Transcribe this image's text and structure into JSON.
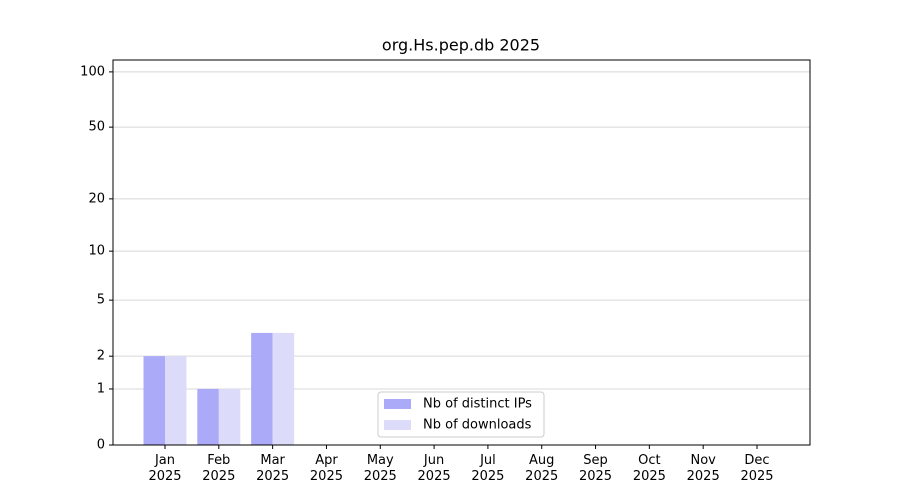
{
  "chart_data": {
    "type": "bar",
    "title": "org.Hs.pep.db 2025",
    "categories": [
      "Jan\n2025",
      "Feb\n2025",
      "Mar\n2025",
      "Apr\n2025",
      "May\n2025",
      "Jun\n2025",
      "Jul\n2025",
      "Aug\n2025",
      "Sep\n2025",
      "Oct\n2025",
      "Nov\n2025",
      "Dec\n2025"
    ],
    "series": [
      {
        "name": "Nb of distinct IPs",
        "color": "#aaaaf8",
        "values": [
          2,
          1,
          3,
          0,
          0,
          0,
          0,
          0,
          0,
          0,
          0,
          0
        ]
      },
      {
        "name": "Nb of downloads",
        "color": "#dcdcfa",
        "values": [
          2,
          1,
          3,
          0,
          0,
          0,
          0,
          0,
          0,
          0,
          0,
          0
        ]
      }
    ],
    "yscale": "symlog",
    "ylim": [
      0,
      116
    ],
    "yticks": [
      0,
      1,
      2,
      5,
      10,
      20,
      50,
      100
    ],
    "grid": true,
    "legend": "lower center"
  }
}
